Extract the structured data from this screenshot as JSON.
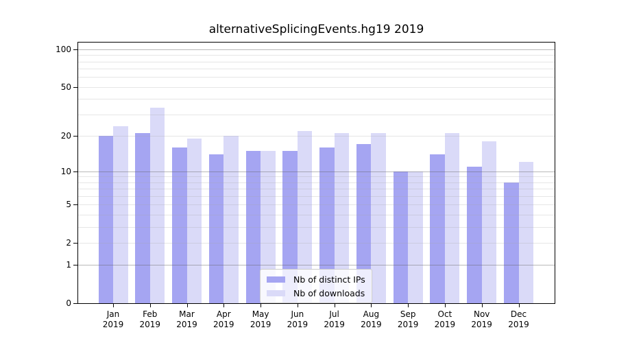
{
  "title": "alternativeSplicingEvents.hg19 2019",
  "chart_data": {
    "type": "bar",
    "title": "alternativeSplicingEvents.hg19 2019",
    "categories": [
      "Jan",
      "Feb",
      "Mar",
      "Apr",
      "May",
      "Jun",
      "Jul",
      "Aug",
      "Sep",
      "Oct",
      "Nov",
      "Dec"
    ],
    "x_year_label": "2019",
    "series": [
      {
        "name": "Nb of distinct IPs",
        "color": "#a5a5f2",
        "values": [
          20,
          21,
          16,
          14,
          15,
          15,
          16,
          17,
          10,
          14,
          11,
          8
        ]
      },
      {
        "name": "Nb of downloads",
        "color": "#dadaf8",
        "values": [
          24,
          34,
          19,
          20,
          15,
          22,
          21,
          21,
          10,
          21,
          18,
          12
        ]
      }
    ],
    "y_scale": "log10(value+1)",
    "y_ticks": [
      100,
      50,
      20,
      10,
      5,
      2,
      1,
      0
    ],
    "y_gridlines_major": [
      1,
      10,
      100
    ],
    "y_gridlines_minor": [
      2,
      3,
      4,
      5,
      6,
      7,
      8,
      9,
      20,
      30,
      40,
      50,
      60,
      70,
      80,
      90
    ],
    "ylim": [
      0,
      113
    ],
    "grid": true,
    "legend_position": "lower center"
  },
  "colors": {
    "bar_distinct_ips": "#a5a5f2",
    "bar_downloads": "#dadaf8",
    "grid_major": "#bebebe",
    "grid_minor": "#e7e7e7",
    "spine": "#000000",
    "text": "#000000",
    "legend_border": "#cccccc"
  }
}
